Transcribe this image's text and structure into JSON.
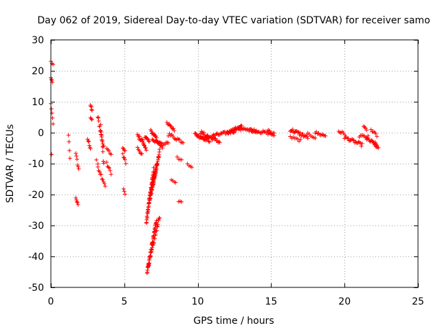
{
  "chart_data": {
    "type": "scatter",
    "title": "Day 062 of 2019, Sidereal Day-to-day VTEC variation (SDTVAR) for receiver samo",
    "xlabel": "GPS time / hours",
    "ylabel": "SDTVAR / TECUs",
    "xlim": [
      0,
      25
    ],
    "ylim": [
      -50,
      30
    ],
    "xticks": [
      0,
      5,
      10,
      15,
      20,
      25
    ],
    "yticks": [
      30,
      20,
      10,
      0,
      -10,
      -20,
      -30,
      -40,
      -50
    ],
    "grid": true,
    "marker": "+",
    "colors": {
      "points": "#ff0000",
      "grid": "#a0a0a0",
      "axes": "#000000"
    },
    "series": [
      {
        "name": "SDTVAR",
        "segments": [
          {
            "x0": 0.0,
            "x1": 0.15,
            "y0": 23,
            "y1": 22,
            "n": 3,
            "jitter": 0.3
          },
          {
            "x0": 0.0,
            "x1": 0.1,
            "y0": 17.5,
            "y1": 16.5,
            "n": 4,
            "jitter": 0.3
          },
          {
            "x0": 0.0,
            "x1": 0.15,
            "y0": 9,
            "y1": 3,
            "n": 5,
            "jitter": 0.5
          },
          {
            "x0": 0.05,
            "x1": 0.1,
            "y0": -7,
            "y1": -7,
            "n": 1,
            "jitter": 0
          },
          {
            "x0": 1.2,
            "x1": 1.3,
            "y0": -0.5,
            "y1": -8,
            "n": 4,
            "jitter": 0.5
          },
          {
            "x0": 1.7,
            "x1": 1.9,
            "y0": -7,
            "y1": -12,
            "n": 6,
            "jitter": 0.6
          },
          {
            "x0": 1.7,
            "x1": 1.85,
            "y0": -21,
            "y1": -23.5,
            "n": 5,
            "jitter": 0.3
          },
          {
            "x0": 2.5,
            "x1": 2.7,
            "y0": -2,
            "y1": -5,
            "n": 6,
            "jitter": 0.5
          },
          {
            "x0": 2.7,
            "x1": 2.8,
            "y0": 9,
            "y1": 7,
            "n": 5,
            "jitter": 0.4
          },
          {
            "x0": 2.7,
            "x1": 2.8,
            "y0": 5,
            "y1": 4,
            "n": 3,
            "jitter": 0.3
          },
          {
            "x0": 3.1,
            "x1": 3.2,
            "y0": -9,
            "y1": -10,
            "n": 2,
            "jitter": 0.3
          },
          {
            "x0": 3.2,
            "x1": 3.6,
            "y0": 5,
            "y1": -5,
            "n": 14,
            "jitter": 0.8
          },
          {
            "x0": 3.2,
            "x1": 3.7,
            "y0": -11,
            "y1": -17,
            "n": 10,
            "jitter": 0.6
          },
          {
            "x0": 3.4,
            "x1": 3.6,
            "y0": 2,
            "y1": -10,
            "n": 8,
            "jitter": 1.0
          },
          {
            "x0": 3.8,
            "x1": 4.1,
            "y0": -5,
            "y1": -7,
            "n": 5,
            "jitter": 0.5
          },
          {
            "x0": 3.8,
            "x1": 4.1,
            "y0": -10,
            "y1": -13,
            "n": 6,
            "jitter": 0.5
          },
          {
            "x0": 4.9,
            "x1": 5.05,
            "y0": -5,
            "y1": -6,
            "n": 4,
            "jitter": 0.3
          },
          {
            "x0": 4.9,
            "x1": 5.1,
            "y0": -7,
            "y1": -10,
            "n": 5,
            "jitter": 0.5
          },
          {
            "x0": 4.95,
            "x1": 5.05,
            "y0": -18,
            "y1": -20,
            "n": 3,
            "jitter": 0.3
          },
          {
            "x0": 5.9,
            "x1": 6.3,
            "y0": -1,
            "y1": -3,
            "n": 12,
            "jitter": 0.6
          },
          {
            "x0": 5.9,
            "x1": 6.2,
            "y0": -5,
            "y1": -7,
            "n": 6,
            "jitter": 0.4
          },
          {
            "x0": 6.3,
            "x1": 6.5,
            "y0": -4,
            "y1": -5.5,
            "n": 6,
            "jitter": 0.4
          },
          {
            "x0": 6.4,
            "x1": 6.7,
            "y0": -1,
            "y1": -3,
            "n": 8,
            "jitter": 0.5
          },
          {
            "x0": 6.8,
            "x1": 7.2,
            "y0": 0.5,
            "y1": -1.5,
            "n": 10,
            "jitter": 0.5
          },
          {
            "x0": 6.9,
            "x1": 7.6,
            "y0": -2,
            "y1": -4.5,
            "n": 14,
            "jitter": 0.6
          },
          {
            "x0": 7.2,
            "x1": 8.0,
            "y0": -3,
            "y1": -3.5,
            "n": 12,
            "jitter": 0.5
          },
          {
            "x0": 6.5,
            "x1": 7.0,
            "y0": -29,
            "y1": -12,
            "n": 40,
            "jitter": 0.8
          },
          {
            "x0": 6.7,
            "x1": 7.2,
            "y0": -22,
            "y1": -11,
            "n": 35,
            "jitter": 1.0
          },
          {
            "x0": 6.9,
            "x1": 7.4,
            "y0": -18,
            "y1": -6,
            "n": 30,
            "jitter": 0.8
          },
          {
            "x0": 6.55,
            "x1": 7.2,
            "y0": -45,
            "y1": -28,
            "n": 40,
            "jitter": 0.6
          },
          {
            "x0": 6.6,
            "x1": 7.4,
            "y0": -44,
            "y1": -27,
            "n": 30,
            "jitter": 0.6
          },
          {
            "x0": 7.9,
            "x1": 8.4,
            "y0": 3,
            "y1": 1,
            "n": 10,
            "jitter": 0.4
          },
          {
            "x0": 8.0,
            "x1": 9.0,
            "y0": -0.5,
            "y1": -3,
            "n": 14,
            "jitter": 0.6
          },
          {
            "x0": 8.2,
            "x1": 8.5,
            "y0": -15,
            "y1": -16,
            "n": 4,
            "jitter": 0.3
          },
          {
            "x0": 8.6,
            "x1": 8.9,
            "y0": -8,
            "y1": -9,
            "n": 4,
            "jitter": 0.3
          },
          {
            "x0": 8.7,
            "x1": 8.9,
            "y0": -22,
            "y1": -22.5,
            "n": 3,
            "jitter": 0.3
          },
          {
            "x0": 9.3,
            "x1": 9.6,
            "y0": -10,
            "y1": -11,
            "n": 4,
            "jitter": 0.3
          },
          {
            "x0": 9.8,
            "x1": 10.8,
            "y0": -0.5,
            "y1": -2.5,
            "n": 22,
            "jitter": 0.6
          },
          {
            "x0": 10.2,
            "x1": 11.5,
            "y0": 0,
            "y1": -3,
            "n": 24,
            "jitter": 0.6
          },
          {
            "x0": 11.0,
            "x1": 12.5,
            "y0": -1,
            "y1": 0.5,
            "n": 24,
            "jitter": 0.5
          },
          {
            "x0": 12.0,
            "x1": 13.0,
            "y0": 0,
            "y1": 2,
            "n": 20,
            "jitter": 0.4
          },
          {
            "x0": 12.5,
            "x1": 14.0,
            "y0": 1.5,
            "y1": 0.5,
            "n": 22,
            "jitter": 0.4
          },
          {
            "x0": 13.5,
            "x1": 15.2,
            "y0": 1,
            "y1": -0.5,
            "n": 26,
            "jitter": 0.5
          },
          {
            "x0": 14.8,
            "x1": 15.2,
            "y0": 1,
            "y1": -1,
            "n": 6,
            "jitter": 0.4
          },
          {
            "x0": 16.3,
            "x1": 17.5,
            "y0": 1,
            "y1": -1.5,
            "n": 22,
            "jitter": 0.6
          },
          {
            "x0": 16.3,
            "x1": 17.0,
            "y0": -1.5,
            "y1": -2.5,
            "n": 8,
            "jitter": 0.4
          },
          {
            "x0": 17.5,
            "x1": 18.0,
            "y0": -0.5,
            "y1": -1.5,
            "n": 6,
            "jitter": 0.4
          },
          {
            "x0": 18.0,
            "x1": 18.7,
            "y0": 0,
            "y1": -1,
            "n": 10,
            "jitter": 0.5
          },
          {
            "x0": 19.6,
            "x1": 20.0,
            "y0": 0.5,
            "y1": -0.5,
            "n": 6,
            "jitter": 0.5
          },
          {
            "x0": 20.0,
            "x1": 21.2,
            "y0": -1.5,
            "y1": -4,
            "n": 20,
            "jitter": 0.5
          },
          {
            "x0": 21.0,
            "x1": 21.6,
            "y0": -1,
            "y1": -1.5,
            "n": 8,
            "jitter": 0.5
          },
          {
            "x0": 21.3,
            "x1": 21.5,
            "y0": 2,
            "y1": 1,
            "n": 4,
            "jitter": 0.3
          },
          {
            "x0": 21.5,
            "x1": 22.2,
            "y0": -2,
            "y1": -4,
            "n": 14,
            "jitter": 0.6
          },
          {
            "x0": 21.8,
            "x1": 22.2,
            "y0": 1,
            "y1": -1,
            "n": 6,
            "jitter": 0.4
          },
          {
            "x0": 22.0,
            "x1": 22.3,
            "y0": -3.5,
            "y1": -5,
            "n": 6,
            "jitter": 0.4
          }
        ]
      }
    ]
  }
}
